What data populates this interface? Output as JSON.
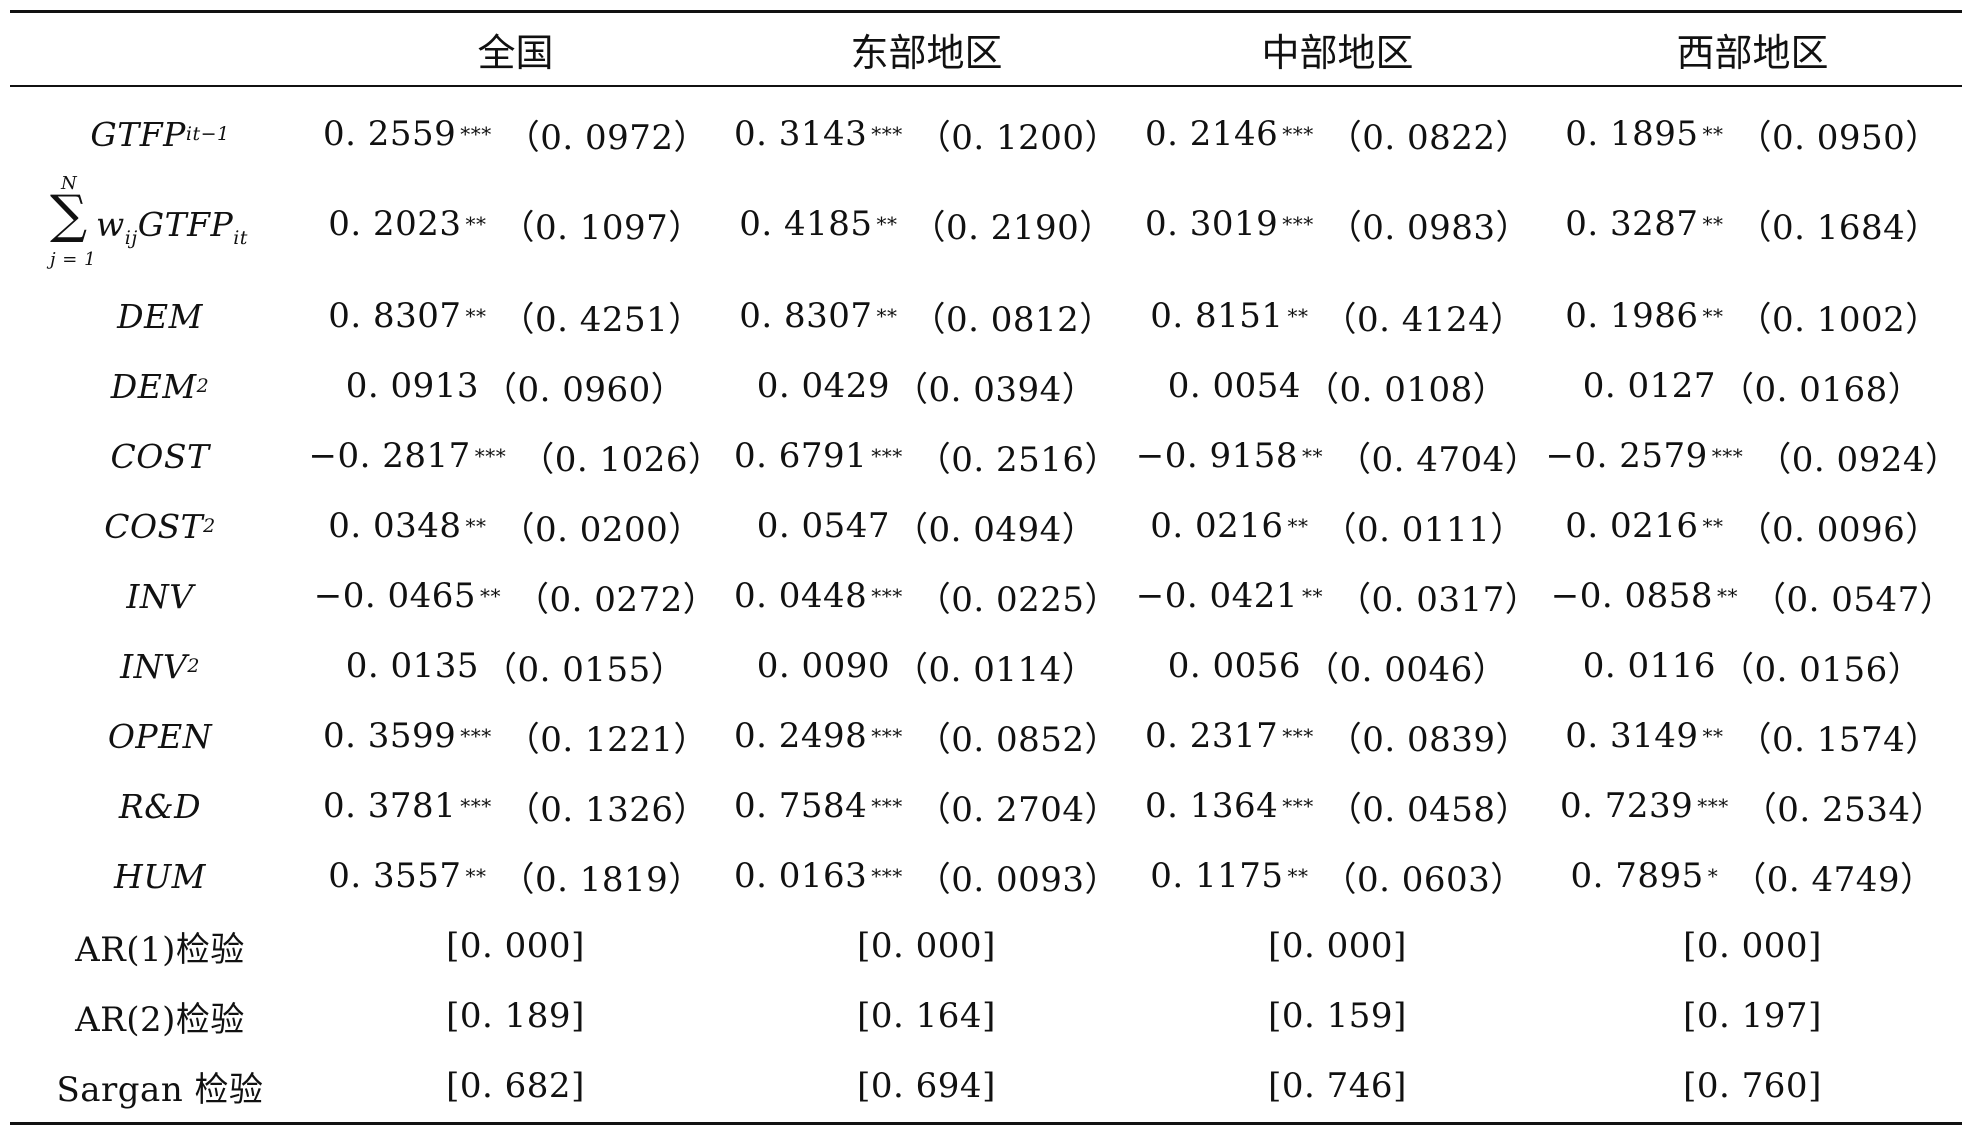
{
  "header": {
    "blank": "",
    "national": "全国",
    "east": "东部地区",
    "central": "中部地区",
    "west": "西部地区"
  },
  "rows": [
    {
      "var_main": "GTFP",
      "var_sub": "it−1",
      "var_sup": "",
      "cells": [
        {
          "v": "0. 2559",
          "s": "***",
          "se": "（0. 0972）"
        },
        {
          "v": "0. 3143",
          "s": "***",
          "se": "（0. 1200）"
        },
        {
          "v": "0. 2146",
          "s": "***",
          "se": "（0. 0822）"
        },
        {
          "v": "0. 1895",
          "s": "**",
          "se": "（0. 0950）"
        }
      ]
    },
    {
      "sum_top": "N",
      "sum_bottom": "j = 1",
      "sum_w": "w",
      "sum_w_sub": "ij",
      "sum_var": "GTFP",
      "sum_var_sub": "it",
      "cells": [
        {
          "v": "0. 2023",
          "s": "**",
          "se": "（0. 1097）"
        },
        {
          "v": "0. 4185",
          "s": "**",
          "se": "（0. 2190）"
        },
        {
          "v": "0. 3019",
          "s": "***",
          "se": "（0. 0983）"
        },
        {
          "v": "0. 3287",
          "s": "**",
          "se": "（0. 1684）"
        }
      ]
    },
    {
      "var_main": "DEM",
      "var_sub": "",
      "var_sup": "",
      "cells": [
        {
          "v": "0. 8307",
          "s": "**",
          "se": "（0. 4251）"
        },
        {
          "v": "0. 8307",
          "s": "**",
          "se": "（0. 0812）"
        },
        {
          "v": "0. 8151",
          "s": "**",
          "se": "（0. 4124）"
        },
        {
          "v": "0. 1986",
          "s": "**",
          "se": "（0. 1002）"
        }
      ]
    },
    {
      "var_main": "DEM",
      "var_sub": "",
      "var_sup": "2",
      "cells": [
        {
          "v": "0. 0913",
          "s": "",
          "se": "（0. 0960）"
        },
        {
          "v": "0. 0429",
          "s": "",
          "se": "（0. 0394）"
        },
        {
          "v": "0. 0054",
          "s": "",
          "se": "（0. 0108）"
        },
        {
          "v": "0. 0127",
          "s": "",
          "se": "（0. 0168）"
        }
      ]
    },
    {
      "var_main": "COST",
      "var_sub": "",
      "var_sup": "",
      "cells": [
        {
          "v": "−0. 2817",
          "s": "***",
          "se": "（0. 1026）"
        },
        {
          "v": "0. 6791",
          "s": "***",
          "se": "（0. 2516）"
        },
        {
          "v": "−0. 9158",
          "s": "**",
          "se": "（0. 4704）"
        },
        {
          "v": "−0. 2579",
          "s": "***",
          "se": "（0. 0924）"
        }
      ]
    },
    {
      "var_main": "COST",
      "var_sub": "",
      "var_sup": "2",
      "cells": [
        {
          "v": "0. 0348",
          "s": "**",
          "se": "（0. 0200）"
        },
        {
          "v": "0. 0547",
          "s": "",
          "se": "（0. 0494）"
        },
        {
          "v": "0. 0216",
          "s": "**",
          "se": "（0. 0111）"
        },
        {
          "v": "0. 0216",
          "s": "**",
          "se": "（0. 0096）"
        }
      ]
    },
    {
      "var_main": "INV",
      "var_sub": "",
      "var_sup": "",
      "cells": [
        {
          "v": "−0. 0465",
          "s": "**",
          "se": "（0. 0272）"
        },
        {
          "v": "0. 0448",
          "s": "***",
          "se": "（0. 0225）"
        },
        {
          "v": "−0. 0421",
          "s": "**",
          "se": "（0. 0317）"
        },
        {
          "v": "−0. 0858",
          "s": "**",
          "se": "（0. 0547）"
        }
      ]
    },
    {
      "var_main": "INV",
      "var_sub": "",
      "var_sup": "2",
      "cells": [
        {
          "v": "0. 0135",
          "s": "",
          "se": "（0. 0155）"
        },
        {
          "v": "0. 0090",
          "s": "",
          "se": "（0. 0114）"
        },
        {
          "v": "0. 0056",
          "s": "",
          "se": "（0. 0046）"
        },
        {
          "v": "0. 0116",
          "s": "",
          "se": "（0. 0156）"
        }
      ]
    },
    {
      "var_main": "OPEN",
      "var_sub": "",
      "var_sup": "",
      "cells": [
        {
          "v": "0. 3599",
          "s": "***",
          "se": "（0. 1221）"
        },
        {
          "v": "0. 2498",
          "s": "***",
          "se": "（0. 0852）"
        },
        {
          "v": "0. 2317",
          "s": "***",
          "se": "（0. 0839）"
        },
        {
          "v": "0. 3149",
          "s": "**",
          "se": "（0. 1574）"
        }
      ]
    },
    {
      "var_main": "R&D",
      "var_sub": "",
      "var_sup": "",
      "cells": [
        {
          "v": "0. 3781",
          "s": "***",
          "se": "（0. 1326）"
        },
        {
          "v": "0. 7584",
          "s": "***",
          "se": "（0. 2704）"
        },
        {
          "v": "0. 1364",
          "s": "***",
          "se": "（0. 0458）"
        },
        {
          "v": "0. 7239",
          "s": "***",
          "se": "（0. 2534）"
        }
      ]
    },
    {
      "var_main": "HUM",
      "var_sub": "",
      "var_sup": "",
      "cells": [
        {
          "v": "0. 3557",
          "s": "**",
          "se": "（0. 1819）"
        },
        {
          "v": "0. 0163",
          "s": "***",
          "se": "（0. 0093）"
        },
        {
          "v": "0. 1175",
          "s": "**",
          "se": "（0. 0603）"
        },
        {
          "v": "0. 7895",
          "s": "*",
          "se": "（0. 4749）"
        }
      ]
    },
    {
      "label": "AR(1)检验",
      "cells": [
        {
          "v": "[0. 000]"
        },
        {
          "v": "[0. 000]"
        },
        {
          "v": "[0. 000]"
        },
        {
          "v": "[0. 000]"
        }
      ]
    },
    {
      "label": "AR(2)检验",
      "cells": [
        {
          "v": "[0. 189]"
        },
        {
          "v": "[0. 164]"
        },
        {
          "v": "[0. 159]"
        },
        {
          "v": "[0. 197]"
        }
      ]
    },
    {
      "label": "Sargan 检验",
      "cells": [
        {
          "v": "[0. 682]"
        },
        {
          "v": "[0. 694]"
        },
        {
          "v": "[0. 746]"
        },
        {
          "v": "[0. 760]"
        }
      ]
    }
  ]
}
